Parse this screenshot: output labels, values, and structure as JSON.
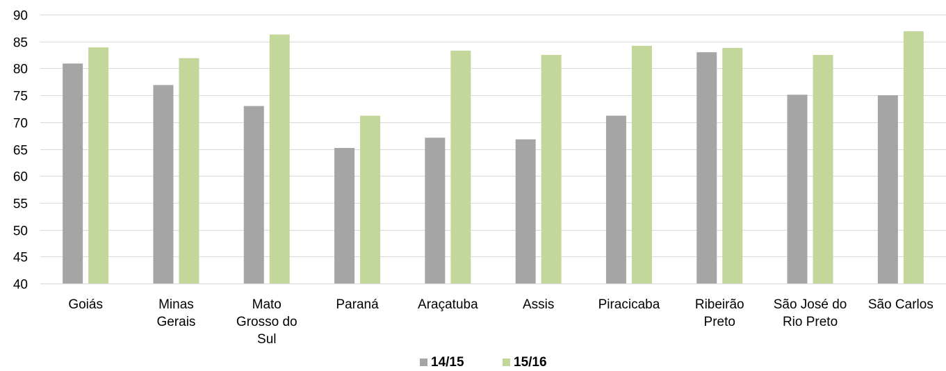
{
  "chart_data": {
    "type": "bar",
    "title": "",
    "xlabel": "",
    "ylabel": "",
    "ylim": [
      40,
      90
    ],
    "yticks": [
      40,
      45,
      50,
      55,
      60,
      65,
      70,
      75,
      80,
      85,
      90
    ],
    "grid": true,
    "legend_position": "bottom",
    "categories": [
      [
        "Goiás"
      ],
      [
        "Minas",
        "Gerais"
      ],
      [
        "Mato",
        "Grosso do",
        "Sul"
      ],
      [
        "Paraná"
      ],
      [
        "Araçatuba"
      ],
      [
        "Assis"
      ],
      [
        "Piracicaba"
      ],
      [
        "Ribeirão",
        "Preto"
      ],
      [
        "São José do",
        "Rio Preto"
      ],
      [
        "São Carlos"
      ]
    ],
    "series": [
      {
        "name": "14/15",
        "color": "#a5a5a5",
        "values": [
          80.9,
          76.9,
          73.0,
          65.2,
          67.1,
          66.8,
          71.2,
          83.0,
          75.1,
          75.0
        ]
      },
      {
        "name": "15/16",
        "color": "#c4d79b",
        "values": [
          83.9,
          81.9,
          86.3,
          71.2,
          83.3,
          82.5,
          84.2,
          83.8,
          82.5,
          86.9
        ]
      }
    ]
  }
}
